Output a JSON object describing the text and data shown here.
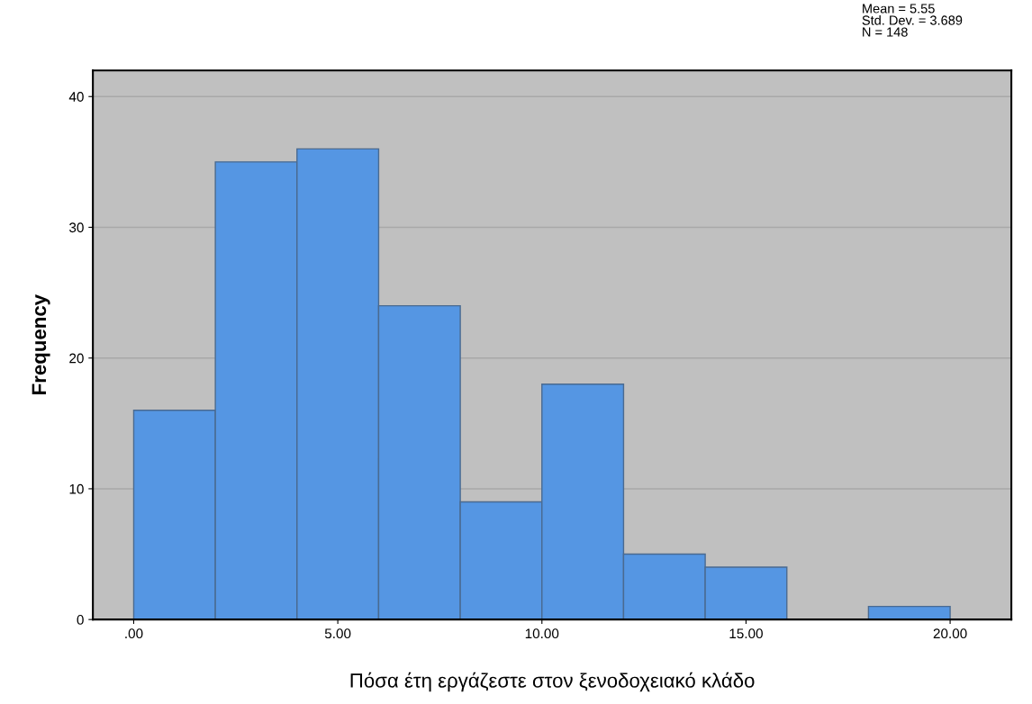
{
  "chart_data": {
    "type": "histogram",
    "xlabel": "Πόσα έτη εργάζεστε στον ξενοδοχειακό κλάδο",
    "ylabel": "Frequency",
    "bins": [
      0,
      2,
      4,
      6,
      8,
      10,
      12,
      14,
      16,
      18,
      20
    ],
    "values": [
      16,
      35,
      36,
      24,
      9,
      18,
      5,
      4,
      0,
      1
    ],
    "color": "#5596e3",
    "xlim": [
      -1,
      21.5
    ],
    "xticks": [
      {
        "value": 0,
        "label": ".00"
      },
      {
        "value": 5,
        "label": "5.00"
      },
      {
        "value": 10,
        "label": "10.00"
      },
      {
        "value": 15,
        "label": "15.00"
      },
      {
        "value": 20,
        "label": "20.00"
      }
    ],
    "ylim": [
      0,
      42
    ],
    "yticks": [
      0,
      10,
      20,
      30,
      40
    ],
    "grid": "y",
    "annotations": [
      "Mean = 5.55\nStd. Dev. = 3.689\nN = 148"
    ]
  }
}
